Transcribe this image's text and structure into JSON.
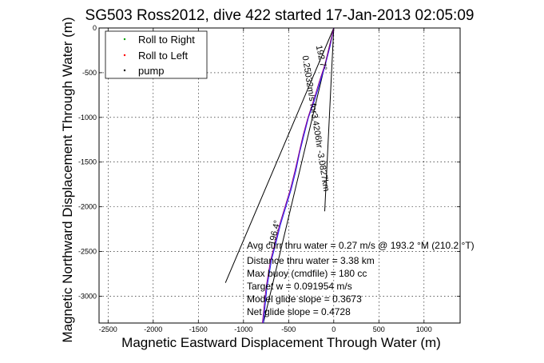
{
  "chart_data": {
    "type": "line",
    "title": "SG503 Ross2012, dive 422 started 17-Jan-2013 02:05:09",
    "xlabel": "Magnetic Eastward Displacement Through Water (m)",
    "ylabel": "Magnetic Northward Displacement Through Water (m)",
    "xlim": [
      -2600,
      1400
    ],
    "ylim": [
      -3300,
      0
    ],
    "x_ticks": [
      -2500,
      -2000,
      -1500,
      -1000,
      -500,
      0,
      500,
      1000
    ],
    "x_tick_labels": [
      "-2500",
      "-2000",
      "-1500",
      "-1000",
      "-500",
      "0",
      "500",
      "1000"
    ],
    "y_ticks": [
      0,
      -500,
      -1000,
      -1500,
      -2000,
      -2500,
      -3000
    ],
    "y_tick_labels": [
      "0",
      "-500",
      "-1000",
      "-1500",
      "-2000",
      "-2500",
      "-3000"
    ],
    "grid": true,
    "legend": {
      "placement": "top-left",
      "entries": [
        {
          "label": "Roll to Right",
          "color": "#00a000",
          "marker": "dot"
        },
        {
          "label": "Roll to Left",
          "color": "#ff0000",
          "marker": "dot"
        },
        {
          "label": "pump",
          "color": "#000000",
          "marker": "dot"
        }
      ]
    },
    "series": [
      {
        "color": "#2020ff",
        "x": [
          0,
          -40,
          -90,
          -150,
          -210,
          -280,
          -330,
          -380,
          -420,
          -470,
          -530,
          -590,
          -640,
          -690,
          -740,
          -780
        ],
        "y": [
          0,
          -200,
          -400,
          -600,
          -800,
          -1000,
          -1200,
          -1400,
          -1600,
          -1800,
          -2000,
          -2200,
          -2400,
          -2600,
          -2900,
          -3300
        ]
      },
      {
        "color": "#8b008b",
        "x": [
          0,
          -45,
          -95,
          -160,
          -220,
          -285,
          -340,
          -385,
          -430,
          -480,
          -540,
          -600,
          -650,
          -700,
          -750,
          -790
        ],
        "y": [
          0,
          -200,
          -400,
          -600,
          -800,
          -1000,
          -1200,
          -1400,
          -1600,
          -1800,
          -2000,
          -2200,
          -2400,
          -2600,
          -2900,
          -3300
        ]
      }
    ],
    "reference_lines": [
      {
        "x": [
          0,
          -1200
        ],
        "y": [
          0,
          -2850
        ],
        "color": "#000000"
      },
      {
        "x": [
          0,
          -780
        ],
        "y": [
          0,
          -3300
        ],
        "color": "#000000"
      },
      {
        "x": [
          0,
          -100
        ],
        "y": [
          0,
          -2050
        ],
        "color": "#000000"
      }
    ],
    "annotations": {
      "rotated_1": "0.25032m/s for3.4206hr -3.0827km",
      "rotated_2": "192.7°",
      "rotated_3": "196.4°"
    },
    "stats": [
      "Avg curr thru water =  0.27 m/s @ 193.2   °M (210.2 °T)",
      "Distance thru water =  3.38 km",
      "Max buoy (cmdfile) = 180 cc",
      "Target w = 0.091954 m/s",
      "Model glide slope = 0.3673",
      "Net glide slope = 0.4728"
    ]
  }
}
